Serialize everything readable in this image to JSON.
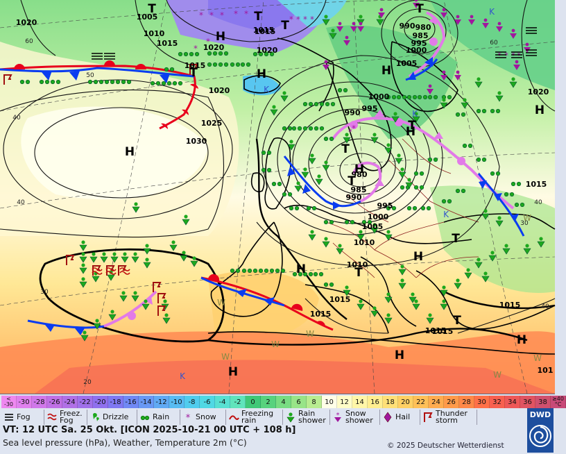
{
  "temperature_scale": {
    "unit": "°C",
    "low_end_label": "<\n-30",
    "high_end_label": "≥40\n°C",
    "steps": [
      {
        "value": "-30",
        "color": "#e080ee"
      },
      {
        "value": "-28",
        "color": "#d078ea"
      },
      {
        "value": "-26",
        "color": "#c070e6"
      },
      {
        "value": "-24",
        "color": "#b070e6"
      },
      {
        "value": "-22",
        "color": "#a070ea"
      },
      {
        "value": "-20",
        "color": "#8f70ee"
      },
      {
        "value": "-18",
        "color": "#7f78f2"
      },
      {
        "value": "-16",
        "color": "#7088f4"
      },
      {
        "value": "-14",
        "color": "#6898f4"
      },
      {
        "value": "-12",
        "color": "#60aaf4"
      },
      {
        "value": "-10",
        "color": "#58bcf2"
      },
      {
        "value": "-8",
        "color": "#50ccee"
      },
      {
        "value": "-6",
        "color": "#50d8e4"
      },
      {
        "value": "-4",
        "color": "#58e0d2"
      },
      {
        "value": "-2",
        "color": "#60e4bc"
      },
      {
        "value": "0",
        "color": "#40c878"
      },
      {
        "value": "2",
        "color": "#58d27e"
      },
      {
        "value": "4",
        "color": "#78dc82"
      },
      {
        "value": "6",
        "color": "#98e488"
      },
      {
        "value": "8",
        "color": "#b8ec90"
      },
      {
        "value": "10",
        "color": "#ffffe8"
      },
      {
        "value": "12",
        "color": "#fffcc8"
      },
      {
        "value": "14",
        "color": "#fff6a8"
      },
      {
        "value": "16",
        "color": "#ffee90"
      },
      {
        "value": "18",
        "color": "#ffe078"
      },
      {
        "value": "20",
        "color": "#ffd064"
      },
      {
        "value": "22",
        "color": "#ffc058"
      },
      {
        "value": "24",
        "color": "#ffac50"
      },
      {
        "value": "26",
        "color": "#ff9a4a"
      },
      {
        "value": "28",
        "color": "#ff8848"
      },
      {
        "value": "30",
        "color": "#ff7048"
      },
      {
        "value": "32",
        "color": "#f86050"
      },
      {
        "value": "34",
        "color": "#ee5858"
      },
      {
        "value": "36",
        "color": "#e05462"
      },
      {
        "value": "38",
        "color": "#d0506e"
      }
    ]
  },
  "weather_legend": [
    {
      "label": "Fog",
      "icon": "fog-icon"
    },
    {
      "label": "Freez.\nFog",
      "icon": "freezing-fog-icon"
    },
    {
      "label": "Drizzle",
      "icon": "drizzle-icon"
    },
    {
      "label": "Rain",
      "icon": "rain-icon"
    },
    {
      "label": "Snow",
      "icon": "snow-icon"
    },
    {
      "label": "Freezing\nrain",
      "icon": "freezing-rain-icon"
    },
    {
      "label": "Rain\nshower",
      "icon": "rain-shower-icon"
    },
    {
      "label": "Snow\nshower",
      "icon": "snow-shower-icon"
    },
    {
      "label": "Hail",
      "icon": "hail-icon"
    },
    {
      "label": "Thunder\nstorm",
      "icon": "thunderstorm-icon"
    }
  ],
  "valid_time": "VT: 12 UTC Sa.  25 Okt. [ICON 2025-10-21  00 UTC + 108 h]",
  "description": "Sea level pressure (hPa), Weather, Temperature 2m (°C)",
  "copyright": "© 2025 Deutscher Wetterdienst",
  "logo_text": "DWD",
  "colors": {
    "warm_front": "#e8001c",
    "cold_front": "#0a3cf0",
    "occluded_front": "#e27ae8",
    "precip_green": "#1da81d",
    "isobar": "#111111"
  },
  "pressure_systems": [
    {
      "label": "H",
      "kind": "high"
    },
    {
      "label": "H",
      "kind": "high"
    },
    {
      "label": "H",
      "kind": "high"
    },
    {
      "label": "H",
      "kind": "high"
    },
    {
      "label": "H",
      "kind": "high"
    },
    {
      "label": "H",
      "kind": "high"
    },
    {
      "label": "H",
      "kind": "high"
    },
    {
      "label": "H",
      "kind": "high"
    },
    {
      "label": "H",
      "kind": "high"
    },
    {
      "label": "H",
      "kind": "high"
    },
    {
      "label": "H",
      "kind": "high"
    },
    {
      "label": "H",
      "kind": "high"
    },
    {
      "label": "T",
      "kind": "low"
    },
    {
      "label": "T",
      "kind": "low"
    },
    {
      "label": "T",
      "kind": "low"
    },
    {
      "label": "T",
      "kind": "low"
    },
    {
      "label": "T",
      "kind": "low"
    },
    {
      "label": "T",
      "kind": "low"
    },
    {
      "label": "T",
      "kind": "low"
    },
    {
      "label": "T",
      "kind": "low"
    },
    {
      "label": "T",
      "kind": "low"
    },
    {
      "label": "T",
      "kind": "low"
    },
    {
      "label": "T",
      "kind": "low"
    }
  ],
  "isobar_labels": [
    "1005",
    "1010",
    "1015",
    "1015",
    "1020",
    "1020",
    "1020",
    "1015",
    "1020",
    "1025",
    "1030",
    "990",
    "980",
    "985",
    "995",
    "1000",
    "1005",
    "1020",
    "1000",
    "995",
    "990",
    "980",
    "985",
    "990",
    "995",
    "1000",
    "1005",
    "1010",
    "1010",
    "1015",
    "1015",
    "1015",
    "1015",
    "1015",
    "1015",
    "1015",
    "101"
  ],
  "temperature_labels": [
    "60",
    "50",
    "40",
    "40",
    "30",
    "20",
    "60",
    "40",
    "30",
    "40"
  ],
  "regional_markers": [
    "K",
    "K",
    "K",
    "K",
    "K",
    "W",
    "W",
    "W",
    "W",
    "W",
    "W",
    "W"
  ]
}
